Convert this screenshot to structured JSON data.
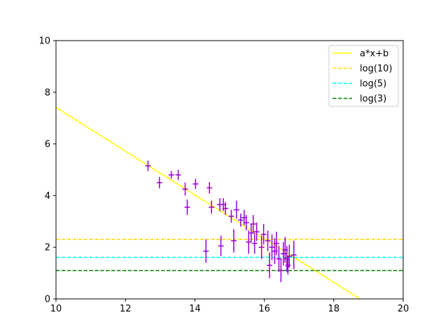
{
  "chart_data": {
    "type": "scatter",
    "title": "",
    "xlabel": "",
    "ylabel": "",
    "xlim": [
      10,
      20
    ],
    "ylim": [
      0,
      10
    ],
    "x_ticks": [
      10,
      12,
      14,
      16,
      18,
      20
    ],
    "y_ticks": [
      0,
      2,
      4,
      6,
      8,
      10
    ],
    "grid": false,
    "legend_placement": "top-right",
    "lines": [
      {
        "name": "a*x+b",
        "kind": "linear",
        "slope": -0.846,
        "intercept": 15.87,
        "color": "#ffff00",
        "style": "solid"
      },
      {
        "name": "log(10)",
        "kind": "constant",
        "value": 2.303,
        "color": "#ffd700",
        "style": "dashed"
      },
      {
        "name": "log(5)",
        "kind": "constant",
        "value": 1.609,
        "color": "#00ffff",
        "style": "dashed"
      },
      {
        "name": "log(3)",
        "kind": "constant",
        "value": 1.099,
        "color": "#008000",
        "style": "dashed"
      }
    ],
    "scatter": {
      "color": "#9400d3",
      "x_error": 0.08,
      "points": [
        {
          "x": 12.65,
          "y": 5.15,
          "yerr": 0.2
        },
        {
          "x": 12.98,
          "y": 4.5,
          "yerr": 0.22
        },
        {
          "x": 13.32,
          "y": 4.8,
          "yerr": 0.15
        },
        {
          "x": 13.52,
          "y": 4.8,
          "yerr": 0.2
        },
        {
          "x": 13.72,
          "y": 4.25,
          "yerr": 0.25
        },
        {
          "x": 13.78,
          "y": 3.55,
          "yerr": 0.3
        },
        {
          "x": 14.02,
          "y": 4.45,
          "yerr": 0.2
        },
        {
          "x": 14.32,
          "y": 1.85,
          "yerr": 0.45
        },
        {
          "x": 14.42,
          "y": 4.3,
          "yerr": 0.22
        },
        {
          "x": 14.48,
          "y": 3.55,
          "yerr": 0.25
        },
        {
          "x": 14.72,
          "y": 3.65,
          "yerr": 0.25
        },
        {
          "x": 14.75,
          "y": 2.05,
          "yerr": 0.4
        },
        {
          "x": 14.82,
          "y": 3.65,
          "yerr": 0.25
        },
        {
          "x": 14.88,
          "y": 3.5,
          "yerr": 0.25
        },
        {
          "x": 15.05,
          "y": 3.2,
          "yerr": 0.25
        },
        {
          "x": 15.12,
          "y": 2.25,
          "yerr": 0.45
        },
        {
          "x": 15.2,
          "y": 3.45,
          "yerr": 0.35
        },
        {
          "x": 15.32,
          "y": 3.05,
          "yerr": 0.25
        },
        {
          "x": 15.42,
          "y": 3.15,
          "yerr": 0.3
        },
        {
          "x": 15.48,
          "y": 2.95,
          "yerr": 0.3
        },
        {
          "x": 15.55,
          "y": 2.2,
          "yerr": 0.45
        },
        {
          "x": 15.62,
          "y": 2.55,
          "yerr": 0.35
        },
        {
          "x": 15.68,
          "y": 2.9,
          "yerr": 0.35
        },
        {
          "x": 15.72,
          "y": 2.15,
          "yerr": 0.4
        },
        {
          "x": 15.78,
          "y": 2.6,
          "yerr": 0.35
        },
        {
          "x": 15.92,
          "y": 2.0,
          "yerr": 0.45
        },
        {
          "x": 15.98,
          "y": 2.5,
          "yerr": 0.4
        },
        {
          "x": 16.1,
          "y": 2.25,
          "yerr": 0.4
        },
        {
          "x": 16.15,
          "y": 1.3,
          "yerr": 0.5
        },
        {
          "x": 16.22,
          "y": 2.0,
          "yerr": 0.5
        },
        {
          "x": 16.3,
          "y": 1.85,
          "yerr": 0.5
        },
        {
          "x": 16.35,
          "y": 2.15,
          "yerr": 0.45
        },
        {
          "x": 16.42,
          "y": 1.55,
          "yerr": 0.5
        },
        {
          "x": 16.48,
          "y": 1.1,
          "yerr": 0.45
        },
        {
          "x": 16.55,
          "y": 1.75,
          "yerr": 0.45
        },
        {
          "x": 16.6,
          "y": 1.9,
          "yerr": 0.5
        },
        {
          "x": 16.65,
          "y": 1.55,
          "yerr": 0.5
        },
        {
          "x": 16.68,
          "y": 1.3,
          "yerr": 0.35
        },
        {
          "x": 16.72,
          "y": 1.65,
          "yerr": 0.45
        },
        {
          "x": 16.85,
          "y": 1.7,
          "yerr": 0.55
        }
      ]
    }
  }
}
